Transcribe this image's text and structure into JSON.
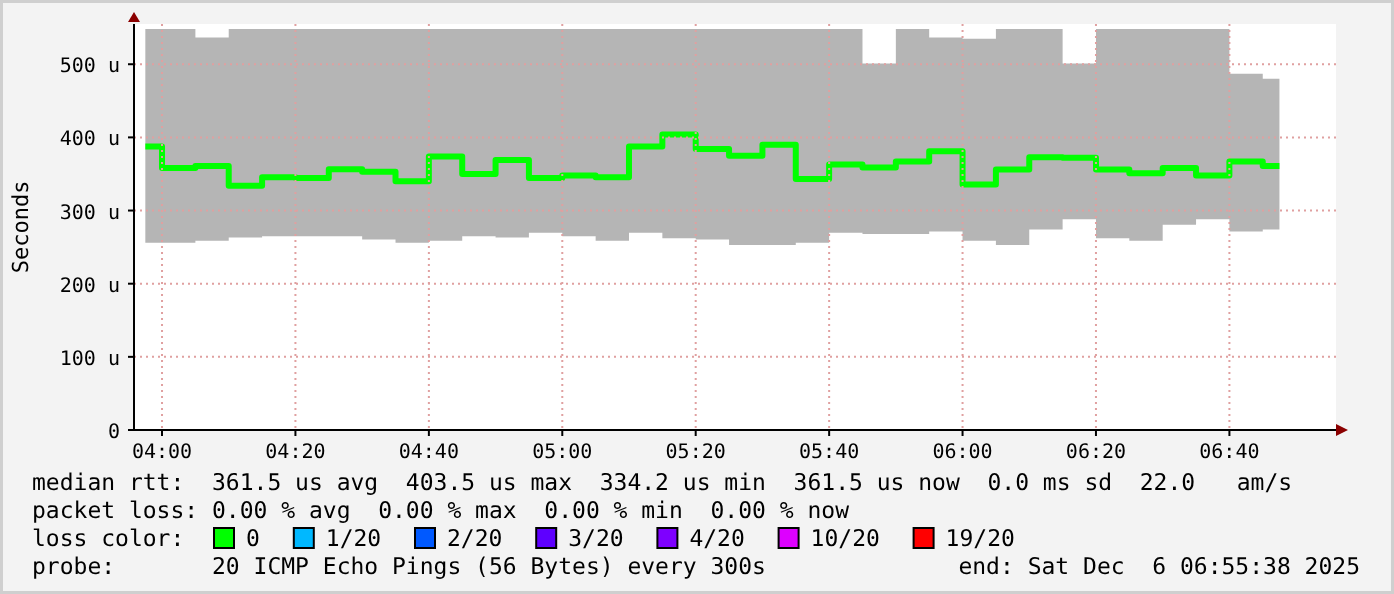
{
  "chart_data": {
    "type": "step",
    "ylabel": "Seconds",
    "x": [
      3.9583,
      4.0417,
      4.125,
      4.2083,
      4.2917,
      4.375,
      4.4583,
      4.5417,
      4.625,
      4.7083,
      4.7917,
      4.875,
      4.9583,
      5.0417,
      5.125,
      5.2083,
      5.2917,
      5.375,
      5.4583,
      5.5417,
      5.625,
      5.7083,
      5.7917,
      5.875,
      5.9583,
      6.0417,
      6.125,
      6.2083,
      6.2917,
      6.375,
      6.4583,
      6.5417,
      6.625,
      6.7083,
      6.7917
    ],
    "xlim": [
      3.93,
      6.933
    ],
    "xticks": [
      {
        "value": 4,
        "label": "04:00"
      },
      {
        "value": 4.3333,
        "label": "04:20"
      },
      {
        "value": 4.6667,
        "label": "04:40"
      },
      {
        "value": 5,
        "label": "05:00"
      },
      {
        "value": 5.3333,
        "label": "05:20"
      },
      {
        "value": 5.6667,
        "label": "05:40"
      },
      {
        "value": 6,
        "label": "06:00"
      },
      {
        "value": 6.3333,
        "label": "06:20"
      },
      {
        "value": 6.6667,
        "label": "06:40"
      }
    ],
    "ylim": [
      0,
      555
    ],
    "yticks": [
      0,
      {
        "value": 100,
        "label": "100 u"
      },
      {
        "value": 200,
        "label": "200 u"
      },
      {
        "value": 300,
        "label": "300 u"
      },
      {
        "value": 400,
        "label": "400 u"
      },
      {
        "value": 500,
        "label": "500 u"
      }
    ],
    "grid": true,
    "legend": "bottom",
    "legend_title": "loss color:",
    "series": [
      {
        "name": "0",
        "color": "#00ff00",
        "values": [
          387.6,
          358,
          361,
          334,
          345.5,
          344.6,
          356.5,
          353,
          340,
          374,
          350,
          369,
          344.6,
          348,
          345.5,
          387.6,
          404,
          384,
          375,
          390,
          343,
          363,
          359,
          367,
          381,
          335.5,
          356,
          373,
          372,
          356,
          351,
          358,
          348,
          367,
          361
        ],
        "lower": [
          256,
          256,
          258.7,
          263,
          265,
          265,
          265,
          260.5,
          256,
          258.7,
          265,
          263,
          269.6,
          265,
          258.7,
          269.6,
          262,
          260.5,
          253,
          253,
          256,
          269.6,
          268,
          268,
          271.5,
          258.7,
          253,
          274,
          288,
          262,
          258.7,
          280.6,
          288,
          271.5,
          274
        ],
        "upper": [
          548,
          548,
          536.6,
          548,
          548,
          548,
          548,
          548,
          548,
          548,
          548,
          548,
          548,
          548,
          548,
          548,
          548,
          548,
          548,
          548,
          548,
          548,
          501,
          548,
          536.6,
          535,
          548,
          548,
          501,
          548,
          548,
          548,
          548,
          487,
          480
        ]
      },
      {
        "name": "1/20",
        "color": "#00b8ff",
        "values": [
          null,
          null,
          null,
          null,
          null,
          null,
          null,
          null,
          null,
          null,
          null,
          null,
          null,
          null,
          null,
          null,
          null,
          null,
          null,
          null,
          null,
          null,
          null,
          null,
          null,
          null,
          null,
          null,
          null,
          null,
          null,
          null,
          null,
          null,
          null
        ]
      },
      {
        "name": "2/20",
        "color": "#0059ff",
        "values": [
          null,
          null,
          null,
          null,
          null,
          null,
          null,
          null,
          null,
          null,
          null,
          null,
          null,
          null,
          null,
          null,
          null,
          null,
          null,
          null,
          null,
          null,
          null,
          null,
          null,
          null,
          null,
          null,
          null,
          null,
          null,
          null,
          null,
          null,
          null
        ]
      },
      {
        "name": "3/20",
        "color": "#5e00ff",
        "values": [
          null,
          null,
          null,
          null,
          null,
          null,
          null,
          null,
          null,
          null,
          null,
          null,
          null,
          null,
          null,
          null,
          null,
          null,
          null,
          null,
          null,
          null,
          null,
          null,
          null,
          null,
          null,
          null,
          null,
          null,
          null,
          null,
          null,
          null,
          null
        ]
      },
      {
        "name": "4/20",
        "color": "#7e00ff",
        "values": [
          null,
          null,
          null,
          null,
          null,
          null,
          null,
          null,
          null,
          null,
          null,
          null,
          null,
          null,
          null,
          null,
          null,
          null,
          null,
          null,
          null,
          null,
          null,
          null,
          null,
          null,
          null,
          null,
          null,
          null,
          null,
          null,
          null,
          null,
          null
        ]
      },
      {
        "name": "10/20",
        "color": "#dd00ff",
        "values": [
          null,
          null,
          null,
          null,
          null,
          null,
          null,
          null,
          null,
          null,
          null,
          null,
          null,
          null,
          null,
          null,
          null,
          null,
          null,
          null,
          null,
          null,
          null,
          null,
          null,
          null,
          null,
          null,
          null,
          null,
          null,
          null,
          null,
          null,
          null
        ]
      },
      {
        "name": "19/20",
        "color": "#ff0000",
        "values": [
          null,
          null,
          null,
          null,
          null,
          null,
          null,
          null,
          null,
          null,
          null,
          null,
          null,
          null,
          null,
          null,
          null,
          null,
          null,
          null,
          null,
          null,
          null,
          null,
          null,
          null,
          null,
          null,
          null,
          null,
          null,
          null,
          null,
          null,
          null
        ]
      }
    ],
    "annotations": [
      "median rtt:  361.5 us avg  403.5 us max  334.2 us min  361.5 us now  0.0 ms sd  22.0   am/s",
      "packet loss: 0.00 % avg  0.00 % max  0.00 % min  0.00 % now",
      "probe:       20 ICMP Echo Pings (56 Bytes) every 300s",
      "end: Sat Dec  6 06:55:38 2025"
    ]
  }
}
